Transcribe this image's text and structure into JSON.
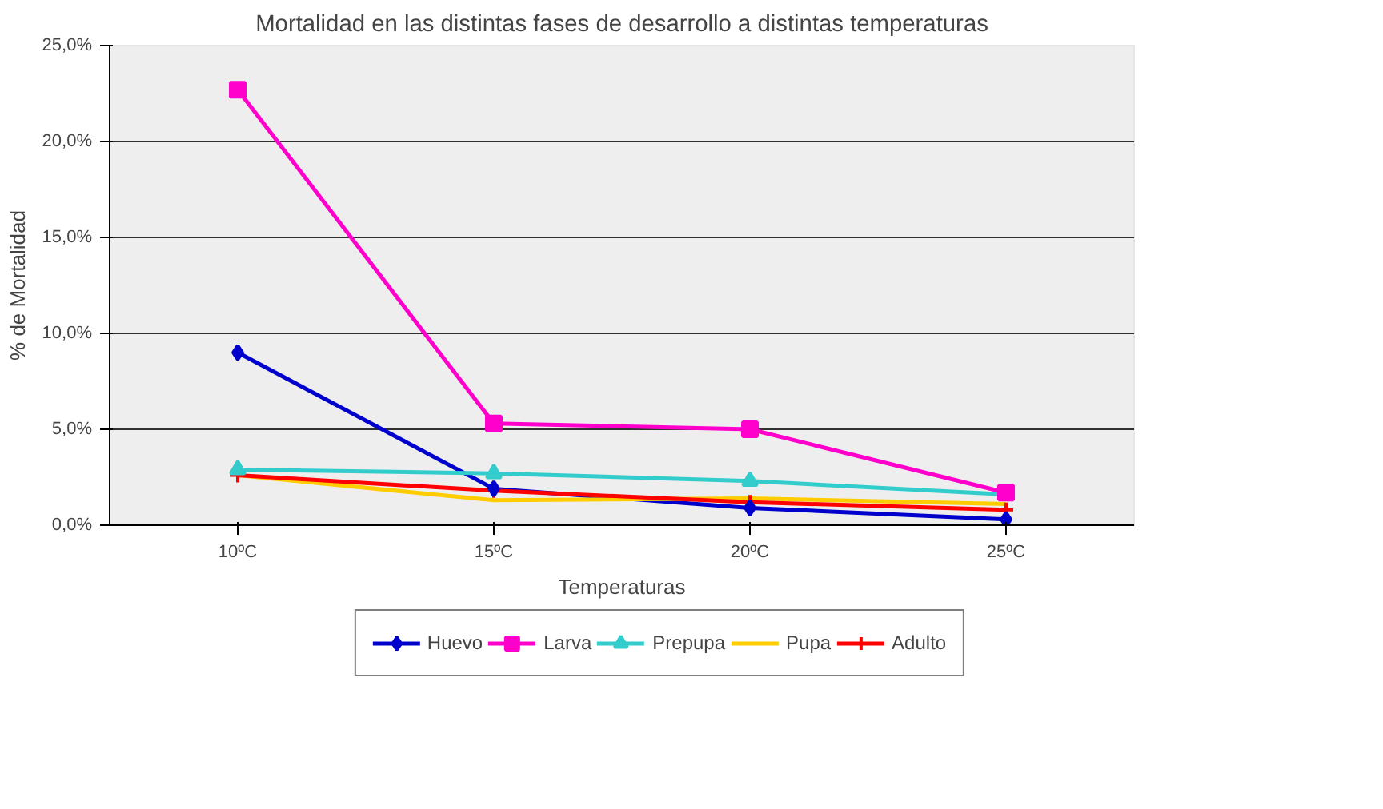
{
  "chart_data": {
    "type": "line",
    "title": "Mortalidad en las distintas fases de desarrollo a distintas temperaturas",
    "xlabel": "Temperaturas",
    "ylabel": "% de Mortalidad",
    "categories": [
      "10ºC",
      "15ºC",
      "20ºC",
      "25ºC"
    ],
    "ylim": [
      0,
      25
    ],
    "yticks": [
      {
        "value": 0,
        "label": "0,0%"
      },
      {
        "value": 5,
        "label": "5,0%"
      },
      {
        "value": 10,
        "label": "10,0%"
      },
      {
        "value": 15,
        "label": "15,0%"
      },
      {
        "value": 20,
        "label": "20,0%"
      },
      {
        "value": 25,
        "label": "25,0%"
      }
    ],
    "grid": "y",
    "legend": "bottom",
    "series": [
      {
        "name": "Huevo",
        "color": "#0000cc",
        "marker": "diamond",
        "values": [
          9.0,
          1.9,
          0.9,
          0.3
        ]
      },
      {
        "name": "Larva",
        "color": "#ff00cc",
        "marker": "square",
        "values": [
          22.7,
          5.3,
          5.0,
          1.7
        ]
      },
      {
        "name": "Prepupa",
        "color": "#33cccc",
        "marker": "triangle",
        "values": [
          2.9,
          2.7,
          2.3,
          1.6
        ]
      },
      {
        "name": "Pupa",
        "color": "#ffcc00",
        "marker": "none",
        "values": [
          2.6,
          1.3,
          1.4,
          1.1
        ]
      },
      {
        "name": "Adulto",
        "color": "#ff0000",
        "marker": "cross",
        "values": [
          2.6,
          1.8,
          1.2,
          0.8
        ]
      }
    ]
  }
}
